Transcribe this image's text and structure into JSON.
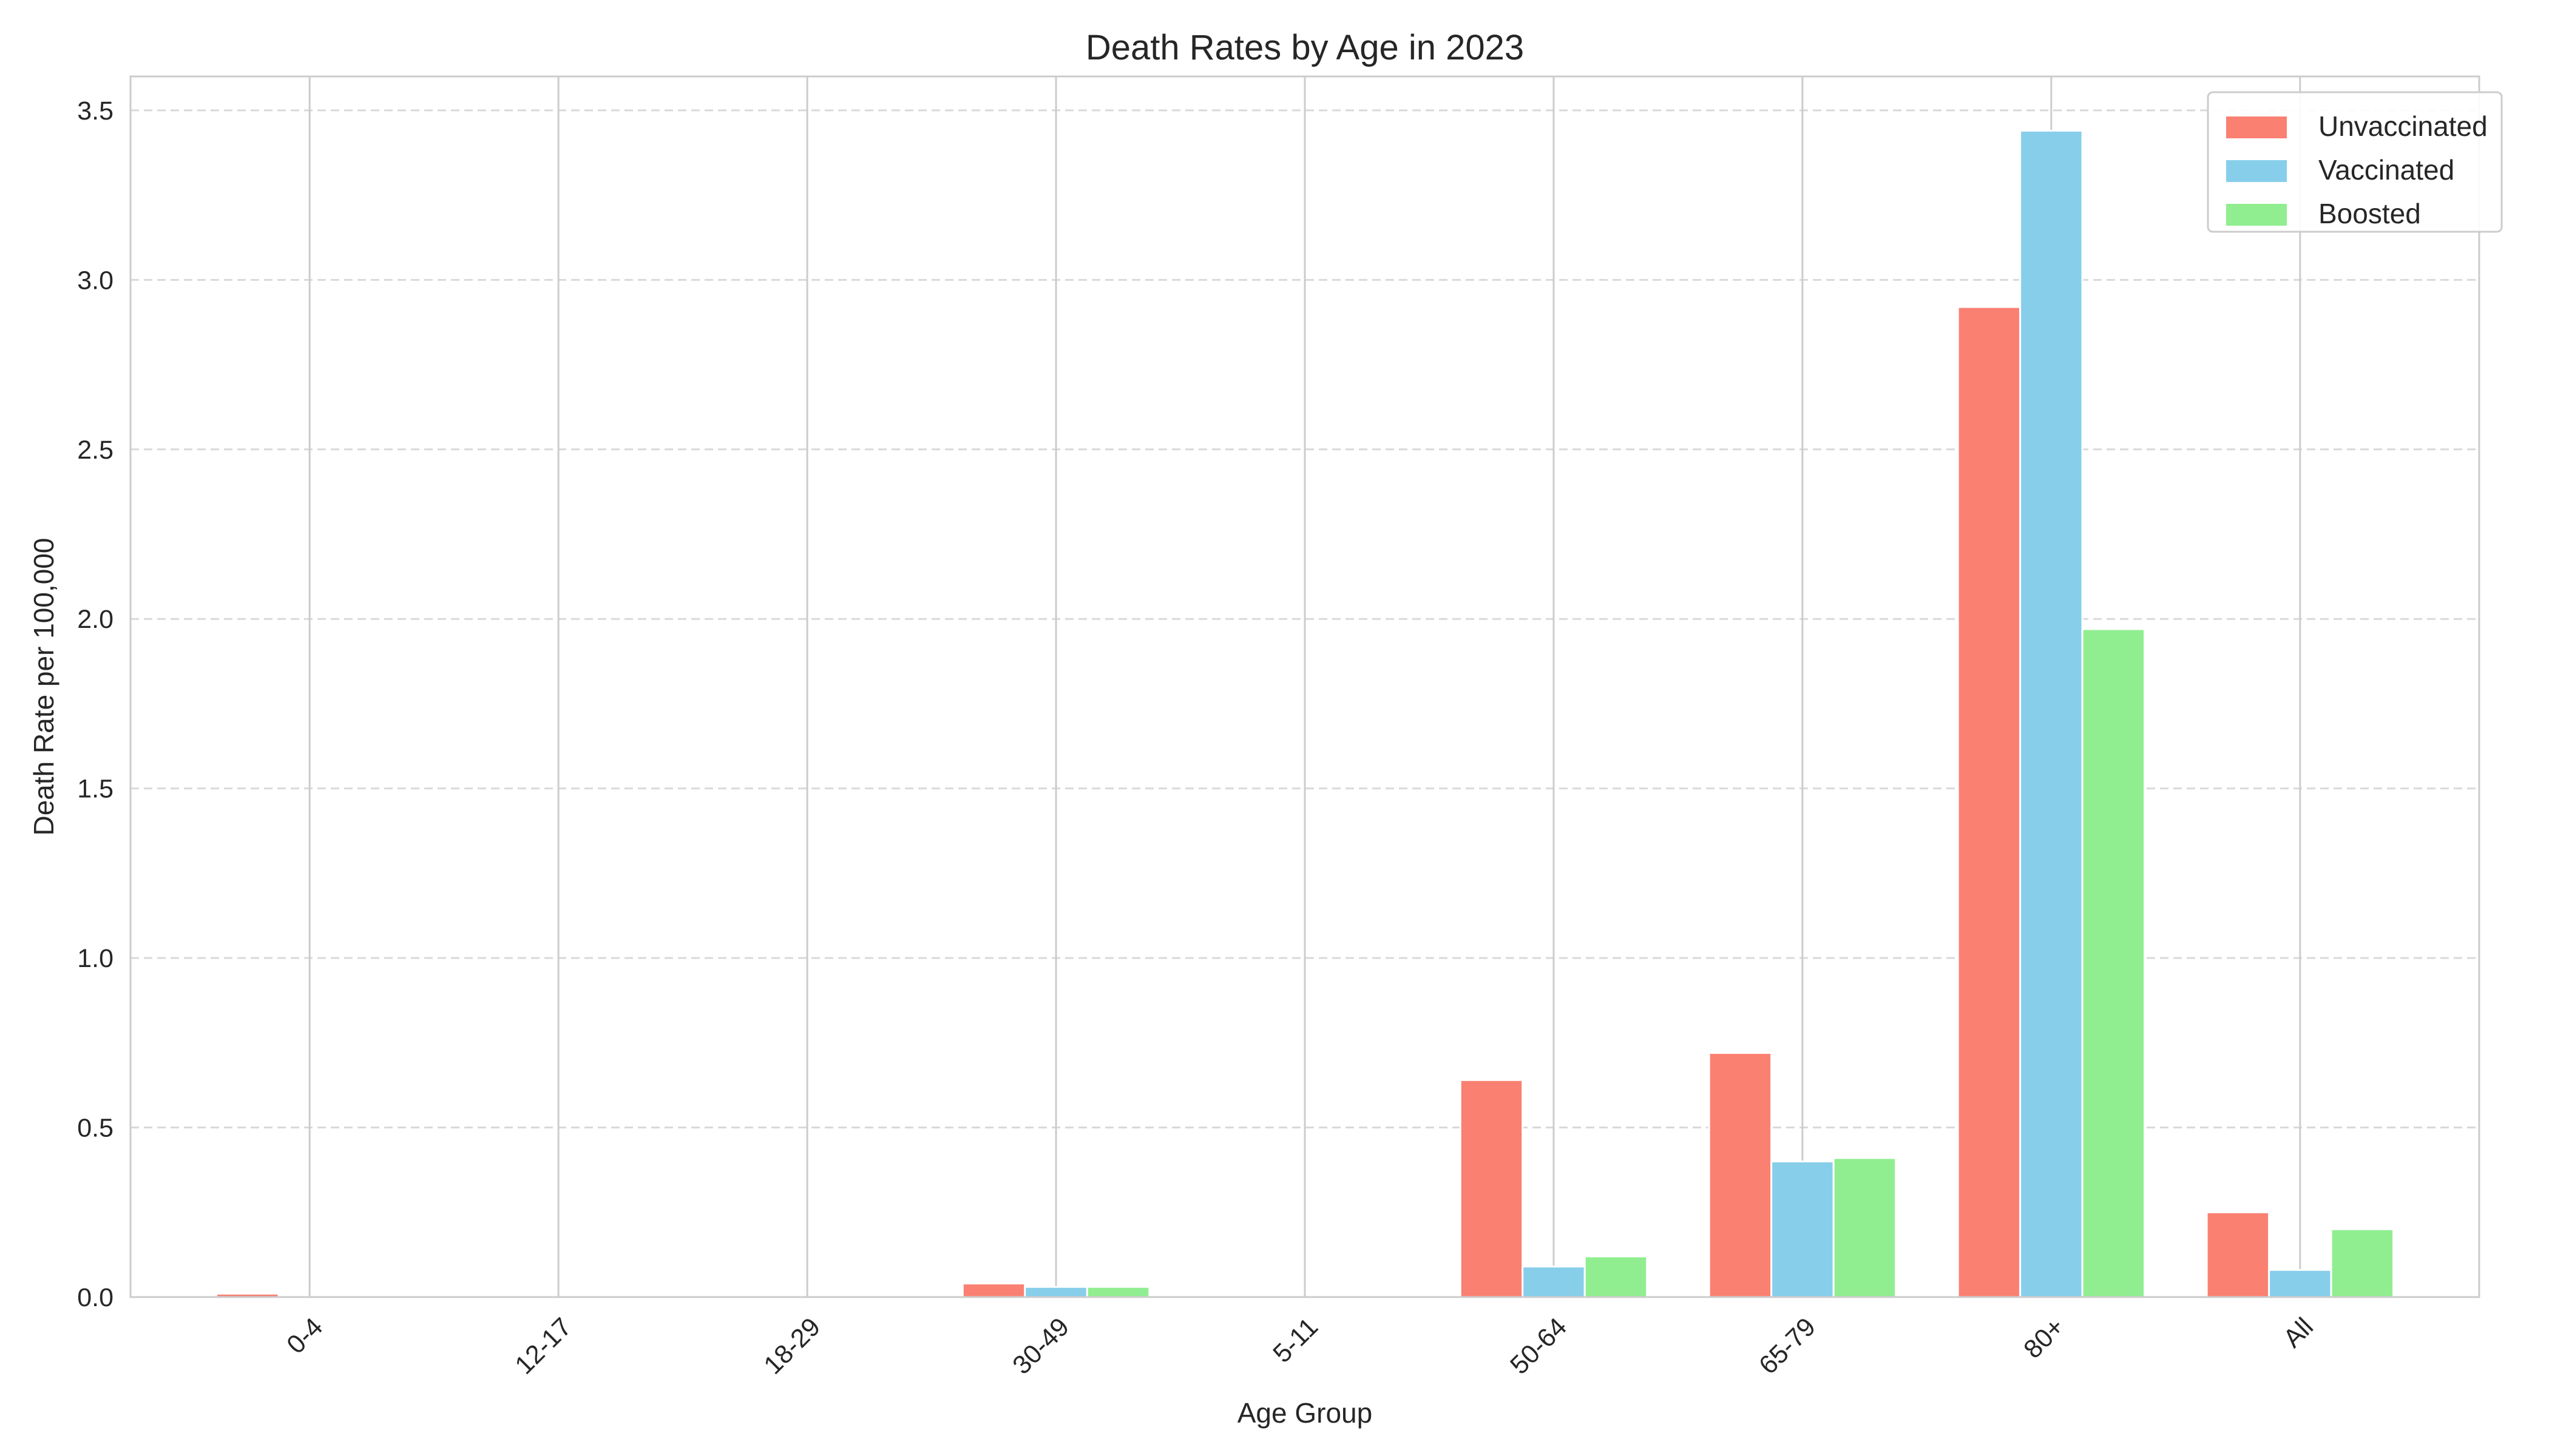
{
  "chart_data": {
    "type": "bar",
    "title": "Death Rates by Age in 2023",
    "xlabel": "Age Group",
    "ylabel": "Death Rate per 100,000",
    "categories": [
      "0-4",
      "12-17",
      "18-29",
      "30-49",
      "5-11",
      "50-64",
      "65-79",
      "80+",
      "All"
    ],
    "series": [
      {
        "name": "Unvaccinated",
        "color": "#FA8072",
        "values": [
          0.01,
          0,
          0,
          0.04,
          0,
          0.64,
          0.72,
          2.92,
          0.25
        ]
      },
      {
        "name": "Vaccinated",
        "color": "#87CEEB",
        "values": [
          0,
          0,
          0,
          0.03,
          0,
          0.09,
          0.4,
          3.44,
          0.08
        ]
      },
      {
        "name": "Boosted",
        "color": "#90EE90",
        "values": [
          0,
          0,
          0,
          0.03,
          0,
          0.12,
          0.41,
          1.97,
          0.2
        ]
      }
    ],
    "ylim": [
      0,
      3.6
    ],
    "yticks": [
      "0.0",
      "0.5",
      "1.0",
      "1.5",
      "2.0",
      "2.5",
      "3.0",
      "3.5"
    ],
    "grid": true,
    "legend_position": "top-right"
  }
}
